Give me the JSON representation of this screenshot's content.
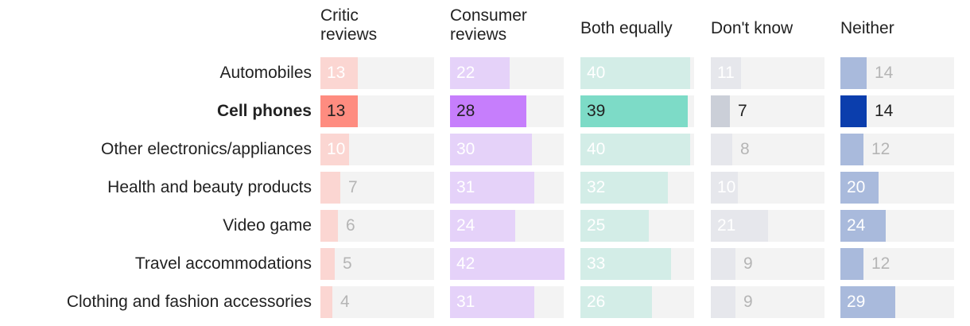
{
  "chart_data": {
    "type": "bar",
    "title": "",
    "highlight_category": "Cell phones",
    "column_headers": [
      "Critic reviews",
      "Consumer reviews",
      "Both equally",
      "Don't know",
      "Neither"
    ],
    "categories": [
      "Automobiles",
      "Cell phones",
      "Other electronics/appliances",
      "Health and beauty products",
      "Video game",
      "Travel accommodations",
      "Clothing and fashion accessories"
    ],
    "series": [
      {
        "name": "Critic reviews",
        "values": [
          13,
          13,
          10,
          7,
          6,
          5,
          4
        ],
        "color": "#fe8c80",
        "faded_color": "#fbd6d2",
        "label_color": "#222222",
        "faded_label_color": "#b5b5b5"
      },
      {
        "name": "Consumer reviews",
        "values": [
          22,
          28,
          30,
          31,
          24,
          42,
          31
        ],
        "color": "#c67efc",
        "faded_color": "#e5d2f9",
        "label_color": "#222222",
        "faded_label_color": "#b5b5b5"
      },
      {
        "name": "Both equally",
        "values": [
          40,
          39,
          40,
          32,
          25,
          33,
          26
        ],
        "color": "#7ddbc7",
        "faded_color": "#d3ede7",
        "label_color": "#222222",
        "faded_label_color": "#b5b5b5"
      },
      {
        "name": "Don't know",
        "values": [
          11,
          7,
          8,
          10,
          21,
          9,
          9
        ],
        "color": "#cbcfd8",
        "faded_color": "#e6e7ec",
        "label_color": "#222222",
        "faded_label_color": "#b5b5b5"
      },
      {
        "name": "Neither",
        "values": [
          14,
          14,
          12,
          20,
          24,
          12,
          29
        ],
        "color": "#0b3ead",
        "faded_color": "#a9badc",
        "label_color": "#ffffff",
        "faded_label_color": "#b5b5b5"
      }
    ],
    "column_max": [
      40,
      42,
      40,
      21,
      42
    ],
    "xlabel": "",
    "ylabel": ""
  }
}
